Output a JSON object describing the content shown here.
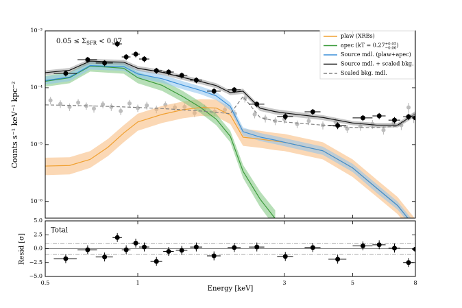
{
  "chart_data": {
    "type": "scatter",
    "annotation": {
      "prefix": "0.05 ≤ Σ",
      "sub": "SFR",
      "suffix": " < 0.07"
    },
    "xlabel": "Energy [keV]",
    "ylabel": "Counts s⁻¹ keV⁻¹ kpc⁻²",
    "resid_ylabel": "Resid [σ]",
    "resid_title": "Total",
    "xscale": "log",
    "yscale": "log",
    "xlim": [
      0.5,
      8
    ],
    "xticks": [
      0.5,
      1,
      3,
      5,
      8
    ],
    "ylim": [
      5.1e-07,
      0.001
    ],
    "yticks": [
      {
        "value": 0.001,
        "label": "10⁻³"
      },
      {
        "value": 0.0001,
        "label": "10⁻⁴"
      },
      {
        "value": 1e-05,
        "label": "10⁻⁵"
      },
      {
        "value": 1e-06,
        "label": "10⁻⁶"
      }
    ],
    "resid_ylim": [
      -5,
      5
    ],
    "resid_yticks": [
      {
        "value": 5,
        "label": "5.0"
      },
      2.5,
      {
        "value": 0,
        "label": "0.0"
      },
      {
        "value": -2.5,
        "label": "−2.5"
      },
      {
        "value": -5,
        "label": "−5.0"
      }
    ],
    "resid_ref_lines": [
      -1,
      0,
      1
    ],
    "legend_loc": "upper right",
    "model_x": [
      0.5,
      0.6,
      0.7,
      0.8,
      0.9,
      1.0,
      1.2,
      1.4,
      1.6,
      1.8,
      2.0,
      2.2,
      2.5,
      2.8,
      3,
      4,
      5,
      6,
      7,
      8
    ],
    "models": [
      {
        "name": "plaw (XRBs)",
        "color": "#f0a030",
        "band_color": "#f8b878",
        "dash": false,
        "values": [
          4.2e-06,
          4.3e-06,
          5.5e-06,
          9e-06,
          1.6e-05,
          2.5e-05,
          3.4e-05,
          4.1e-05,
          4.5e-05,
          4.4e-05,
          3.3e-05,
          1.35e-05,
          1.25e-05,
          1.15e-05,
          1.1e-05,
          7.8e-06,
          3.9e-06,
          1.7e-06,
          8.5e-07,
          3.5e-07
        ],
        "lower": [
          2.9e-06,
          3e-06,
          3.9e-06,
          6.3e-06,
          1.1e-05,
          1.75e-05,
          2.4e-05,
          2.9e-05,
          3.2e-05,
          3.1e-05,
          2.3e-05,
          9.5e-06,
          8.8e-06,
          8e-06,
          7.7e-06,
          5.5e-06,
          2.7e-06,
          1.2e-06,
          6e-07,
          2.5e-07
        ],
        "upper": [
          5.9e-06,
          6e-06,
          7.7e-06,
          1.26e-05,
          2.2e-05,
          3.5e-05,
          4.8e-05,
          5.7e-05,
          6.3e-05,
          6.2e-05,
          4.6e-05,
          1.9e-05,
          1.75e-05,
          1.6e-05,
          1.54e-05,
          1.1e-05,
          5.5e-06,
          2.4e-06,
          1.2e-06,
          4.9e-07
        ]
      },
      {
        "name": "apec (kT = 0.27",
        "name_sup": "+0.05",
        "name_sub": "−0.06",
        "name_end": ")",
        "color": "#3a9a3a",
        "band_color": "#7cc47c",
        "dash": false,
        "values": [
          0.00013,
          0.00015,
          0.00024,
          0.00023,
          0.00022,
          0.00015,
          0.00011,
          7e-05,
          4.5e-05,
          2.8e-05,
          1.4e-05,
          3.4e-06,
          1.1e-06,
          5e-07,
          null,
          null,
          null,
          null,
          null,
          null
        ],
        "lower": [
          0.000104,
          0.00012,
          0.000192,
          0.000184,
          0.000176,
          0.00012,
          8.8e-05,
          5.6e-05,
          3.6e-05,
          2.2e-05,
          1.1e-05,
          2.6e-06,
          8e-07,
          3.5e-07,
          null,
          null,
          null,
          null,
          null,
          null
        ],
        "upper": [
          0.000163,
          0.000188,
          0.0003,
          0.000288,
          0.000275,
          0.000188,
          0.000138,
          8.8e-05,
          5.6e-05,
          3.5e-05,
          1.75e-05,
          4.4e-06,
          1.5e-06,
          7e-07,
          null,
          null,
          null,
          null,
          null,
          null
        ]
      },
      {
        "name": "Source mdl. (plaw+apec)",
        "color": "#3a8fd8",
        "band_color": "#8cc2ee",
        "dash": false,
        "values": [
          0.000134,
          0.000154,
          0.000246,
          0.000239,
          0.000236,
          0.000175,
          0.000144,
          0.000111,
          9e-05,
          7.2e-05,
          4.7e-05,
          1.69e-05,
          1.36e-05,
          1.2e-05,
          1.1e-05,
          7.8e-06,
          3.9e-06,
          1.7e-06,
          8.5e-07,
          3.5e-07
        ],
        "lower": [
          0.000114,
          0.000131,
          0.000209,
          0.000203,
          0.0002,
          0.000149,
          0.000122,
          9.4e-05,
          7.7e-05,
          6.1e-05,
          4e-05,
          1.44e-05,
          1.16e-05,
          1.02e-05,
          9.4e-06,
          6.6e-06,
          3.3e-06,
          1.4e-06,
          7.2e-07,
          3e-07
        ],
        "upper": [
          0.000158,
          0.000182,
          0.00029,
          0.000282,
          0.000278,
          0.000207,
          0.00017,
          0.000131,
          0.000106,
          8.5e-05,
          5.5e-05,
          2e-05,
          1.6e-05,
          1.42e-05,
          1.3e-05,
          9.2e-06,
          4.6e-06,
          2e-06,
          1e-06,
          4.1e-07
        ]
      },
      {
        "name": "Source mdl. + scaled bkg.",
        "color": "#111111",
        "band_color": "#9a9a9a",
        "dash": false,
        "values": [
          0.000184,
          0.000203,
          0.000294,
          0.000286,
          0.000282,
          0.00022,
          0.000187,
          0.000152,
          0.000129,
          0.000109,
          8.2e-05,
          8.7e-05,
          4.36e-05,
          3.8e-05,
          3.6e-05,
          3e-05,
          2.4e-05,
          2.2e-05,
          2.2e-05,
          3.5e-05
        ],
        "lower": [
          0.000166,
          0.000183,
          0.000265,
          0.000257,
          0.000254,
          0.000198,
          0.000168,
          0.000137,
          0.000116,
          9.8e-05,
          7.4e-05,
          7.8e-05,
          3.9e-05,
          3.4e-05,
          3.2e-05,
          2.7e-05,
          2.2e-05,
          2e-05,
          2e-05,
          3.1e-05
        ],
        "upper": [
          0.000202,
          0.000223,
          0.000323,
          0.000315,
          0.00031,
          0.000242,
          0.000206,
          0.000167,
          0.000142,
          0.00012,
          9e-05,
          9.6e-05,
          4.8e-05,
          4.2e-05,
          4e-05,
          3.3e-05,
          2.6e-05,
          2.4e-05,
          2.4e-05,
          3.9e-05
        ]
      },
      {
        "name": "Scaled bkg. mdl.",
        "color": "#808080",
        "dash": true,
        "values": [
          5e-05,
          4.9e-05,
          4.8e-05,
          4.7e-05,
          4.6e-05,
          4.5e-05,
          4.3e-05,
          4.1e-05,
          3.9e-05,
          3.7e-05,
          3.5e-05,
          7e-05,
          3e-05,
          2.6e-05,
          2.5e-05,
          2.2e-05,
          2e-05,
          2e-05,
          2.1e-05,
          3.5e-05
        ]
      }
    ],
    "data": {
      "color": "#000000",
      "x": [
        0.583,
        0.687,
        0.78,
        0.858,
        0.917,
        0.985,
        1.05,
        1.15,
        1.26,
        1.39,
        1.55,
        1.77,
        2.06,
        2.44,
        3.02,
        3.71,
        4.47,
        5.4,
        6.1,
        6.84,
        7.6,
        8.0
      ],
      "xerr": [
        0.05,
        0.05,
        0.05,
        0.03,
        0.03,
        0.03,
        0.04,
        0.05,
        0.05,
        0.06,
        0.07,
        0.09,
        0.1,
        0.14,
        0.18,
        0.22,
        0.3,
        0.4,
        0.3,
        0.3,
        0.3,
        0.2
      ],
      "values": [
        0.000179,
        0.000312,
        0.000272,
        0.00059,
        0.000348,
        0.000389,
        0.00032,
        0.0002,
        0.000189,
        0.000165,
        0.000136,
        8.7e-05,
        9.2e-05,
        5.14e-05,
        3.12e-05,
        3.78e-05,
        2.17e-05,
        2.95e-05,
        3.2e-05,
        2.7e-05,
        3.1e-05,
        2.95e-05
      ],
      "yerr": [
        2.1e-05,
        3.7e-05,
        3.3e-05,
        7e-05,
        4.2e-05,
        4.7e-05,
        3.8e-05,
        2.4e-05,
        2.3e-05,
        2e-05,
        1.6e-05,
        1e-05,
        1.1e-05,
        6e-06,
        4e-06,
        4.5e-06,
        3e-06,
        3.5e-06,
        4e-06,
        3.5e-06,
        4e-06,
        3.5e-06
      ],
      "resid": [
        -1.8,
        -0.2,
        -1.5,
        2.0,
        -0.2,
        1.0,
        0.3,
        -2.3,
        -0.5,
        -0.3,
        0.3,
        -1.3,
        0.2,
        0.3,
        -1.4,
        0.2,
        -1.9,
        0.5,
        0.7,
        0.1,
        -2.5,
        -0.1
      ],
      "resid_err": [
        0.8,
        0.8,
        0.8,
        0.8,
        0.8,
        0.8,
        0.8,
        0.8,
        0.8,
        0.8,
        0.8,
        0.8,
        0.8,
        0.8,
        0.8,
        0.8,
        0.8,
        0.8,
        0.8,
        0.8,
        0.8,
        0.8
      ]
    },
    "bkg_data": {
      "color": "#bdbdbd",
      "x": [
        0.52,
        0.56,
        0.6,
        0.64,
        0.68,
        0.72,
        0.77,
        0.82,
        0.88,
        0.94,
        1.0,
        1.07,
        1.15,
        1.23,
        1.32,
        1.42,
        1.53,
        1.65,
        1.78,
        1.92,
        2.07,
        2.23,
        2.4,
        2.6,
        2.8,
        3.0,
        3.3,
        3.6,
        4.0,
        4.4,
        4.8,
        5.3,
        5.8,
        6.3,
        6.8,
        7.2,
        7.6,
        7.9
      ],
      "values": [
        6e-05,
        5.2e-05,
        4.6e-05,
        5.5e-05,
        4.8e-05,
        4.3e-05,
        5.1e-05,
        4.6e-05,
        3.9e-05,
        5.3e-05,
        4.4e-05,
        4.9e-05,
        4.2e-05,
        5e-05,
        4.5e-05,
        4.6e-05,
        3.6e-05,
        4.4e-05,
        3.8e-05,
        4.1e-05,
        3.5e-05,
        6.5e-05,
        3.4e-05,
        2.9e-05,
        2.6e-05,
        2.8e-05,
        2.3e-05,
        2.6e-05,
        2.2e-05,
        2.5e-05,
        1.9e-05,
        2.1e-05,
        2.3e-05,
        1.8e-05,
        2.4e-05,
        2.2e-05,
        4.5e-05,
        3e-05
      ],
      "yerr": [
        9e-06,
        8e-06,
        7e-06,
        8e-06,
        7e-06,
        6.5e-06,
        7.5e-06,
        7e-06,
        6e-06,
        8e-06,
        6.5e-06,
        7.5e-06,
        6.5e-06,
        7.5e-06,
        7e-06,
        7e-06,
        5.5e-06,
        6.5e-06,
        6e-06,
        6e-06,
        5.5e-06,
        1e-05,
        5e-06,
        4.5e-06,
        4e-06,
        4.5e-06,
        3.5e-06,
        4e-06,
        3.5e-06,
        4e-06,
        3e-06,
        3.5e-06,
        4e-06,
        3e-06,
        4e-06,
        4e-06,
        9e-06,
        6e-06
      ]
    }
  }
}
